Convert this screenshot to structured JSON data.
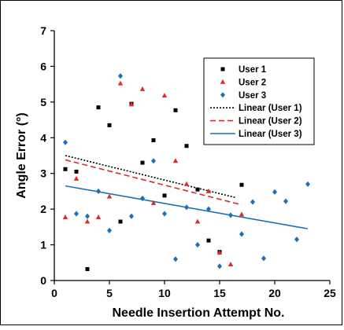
{
  "chart_data": {
    "type": "scatter",
    "xlabel": "Needle Insertion Attempt No.",
    "ylabel": "Angle Error (°)",
    "xlim": [
      0,
      25
    ],
    "ylim": [
      0,
      7
    ],
    "xticks": [
      0,
      5,
      10,
      15,
      20,
      25
    ],
    "yticks": [
      0,
      1,
      2,
      3,
      4,
      5,
      6,
      7
    ],
    "grid": false,
    "legend_position": "top-right",
    "series": [
      {
        "name": "User 1",
        "marker": "square",
        "color": "#000000",
        "points": [
          [
            1,
            3.12
          ],
          [
            2,
            3.05
          ],
          [
            3,
            0.32
          ],
          [
            4,
            4.85
          ],
          [
            5,
            4.35
          ],
          [
            6,
            1.65
          ],
          [
            7,
            4.95
          ],
          [
            8,
            3.3
          ],
          [
            9,
            3.93
          ],
          [
            10,
            2.38
          ],
          [
            11,
            4.77
          ],
          [
            12,
            3.77
          ],
          [
            13,
            2.55
          ],
          [
            14,
            1.12
          ],
          [
            15,
            0.8
          ],
          [
            17,
            2.68
          ]
        ]
      },
      {
        "name": "User 2",
        "marker": "triangle",
        "color": "#e0282e",
        "points": [
          [
            1,
            1.77
          ],
          [
            2,
            2.85
          ],
          [
            3,
            1.65
          ],
          [
            4,
            1.77
          ],
          [
            5,
            2.35
          ],
          [
            6,
            5.52
          ],
          [
            7,
            4.93
          ],
          [
            8,
            5.36
          ],
          [
            9,
            2.17
          ],
          [
            10,
            5.18
          ],
          [
            11,
            3.35
          ],
          [
            12,
            2.7
          ],
          [
            13,
            1.65
          ],
          [
            14,
            2.5
          ],
          [
            15,
            0.78
          ],
          [
            16,
            0.45
          ],
          [
            17,
            1.85
          ]
        ]
      },
      {
        "name": "User 3",
        "marker": "diamond",
        "color": "#1f6fb5",
        "points": [
          [
            1,
            3.87
          ],
          [
            2,
            1.87
          ],
          [
            3,
            1.8
          ],
          [
            4,
            2.5
          ],
          [
            5,
            1.4
          ],
          [
            6,
            5.73
          ],
          [
            7,
            1.8
          ],
          [
            8,
            2.3
          ],
          [
            9,
            3.35
          ],
          [
            10,
            1.87
          ],
          [
            11,
            0.6
          ],
          [
            12,
            2.05
          ],
          [
            13,
            1.0
          ],
          [
            14,
            2.0
          ],
          [
            15,
            0.4
          ],
          [
            16,
            1.83
          ],
          [
            17,
            1.3
          ],
          [
            18,
            2.2
          ],
          [
            19,
            0.62
          ],
          [
            20,
            2.48
          ],
          [
            21,
            2.22
          ],
          [
            22,
            1.15
          ],
          [
            23,
            2.7
          ]
        ]
      },
      {
        "name": "Linear (User 1)",
        "type": "line",
        "style": "dotted",
        "color": "#000000",
        "points": [
          [
            1,
            3.5
          ],
          [
            16.5,
            2.32
          ]
        ]
      },
      {
        "name": "Linear (User 2)",
        "type": "line",
        "style": "dashed",
        "color": "#e0282e",
        "points": [
          [
            1,
            3.38
          ],
          [
            17,
            2.12
          ]
        ]
      },
      {
        "name": "Linear (User 3)",
        "type": "line",
        "style": "solid",
        "color": "#1f6fb5",
        "points": [
          [
            1,
            2.65
          ],
          [
            23,
            1.45
          ]
        ]
      }
    ]
  }
}
